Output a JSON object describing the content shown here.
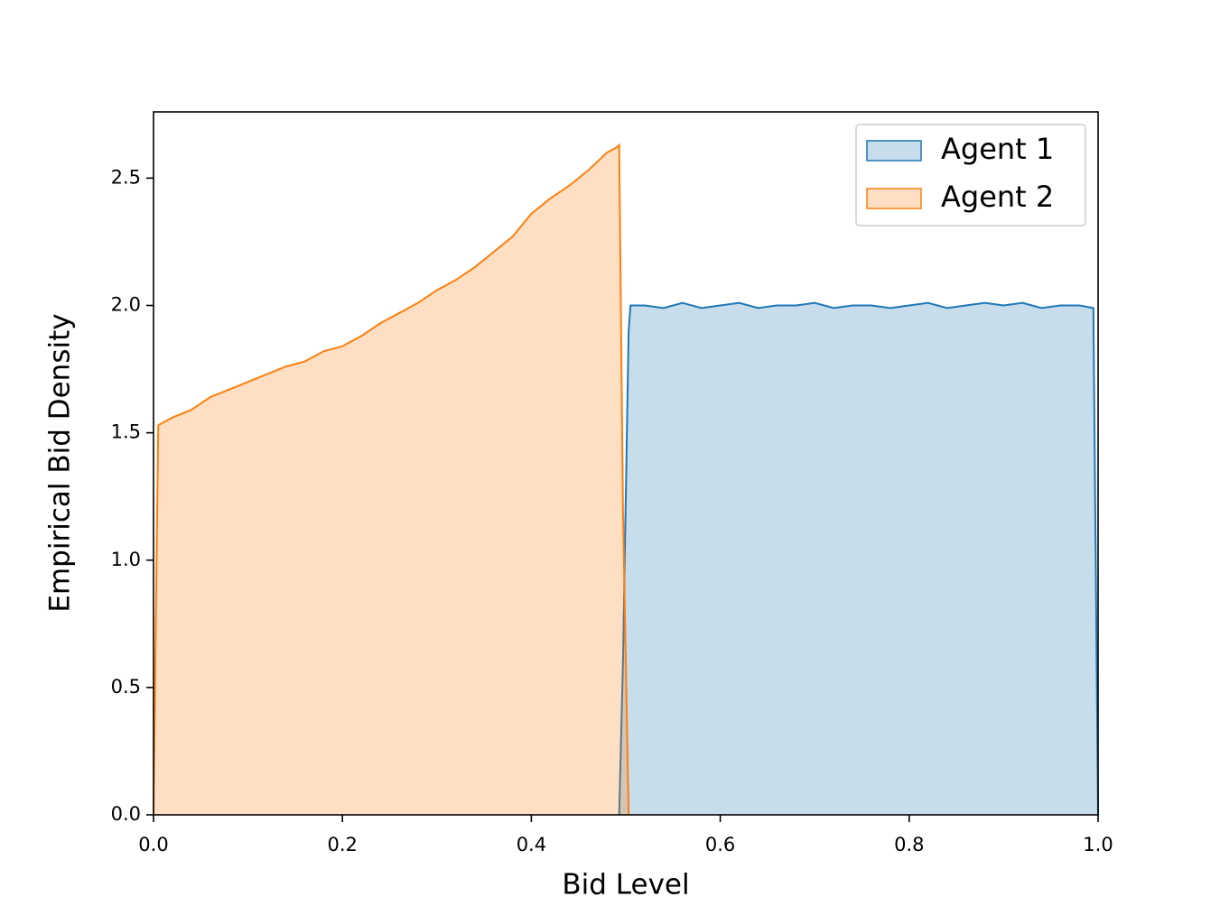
{
  "chart_data": {
    "type": "area",
    "xlabel": "Bid Level",
    "ylabel": "Empirical Bid Density",
    "x": [
      0,
      0.005,
      0.02,
      0.04,
      0.06,
      0.08,
      0.1,
      0.12,
      0.14,
      0.16,
      0.18,
      0.2,
      0.22,
      0.24,
      0.26,
      0.28,
      0.3,
      0.32,
      0.34,
      0.36,
      0.38,
      0.4,
      0.42,
      0.44,
      0.46,
      0.48,
      0.49,
      0.493,
      0.497,
      0.503,
      0.505,
      0.52,
      0.54,
      0.56,
      0.58,
      0.6,
      0.62,
      0.64,
      0.66,
      0.68,
      0.7,
      0.72,
      0.74,
      0.76,
      0.78,
      0.8,
      0.82,
      0.84,
      0.86,
      0.88,
      0.9,
      0.92,
      0.94,
      0.96,
      0.98,
      0.995,
      1.0
    ],
    "series": [
      {
        "name": "Agent 1",
        "color": "#1f77b4",
        "values": [
          null,
          null,
          null,
          null,
          null,
          null,
          null,
          null,
          null,
          null,
          null,
          null,
          null,
          null,
          null,
          null,
          null,
          null,
          null,
          null,
          null,
          null,
          null,
          null,
          null,
          null,
          null,
          0,
          0.6,
          1.9,
          2.0,
          2.0,
          1.99,
          2.01,
          1.99,
          2.0,
          2.01,
          1.99,
          2.0,
          2.0,
          2.01,
          1.99,
          2.0,
          2.0,
          1.99,
          2.0,
          2.01,
          1.99,
          2.0,
          2.01,
          2.0,
          2.01,
          1.99,
          2.0,
          2.0,
          1.99,
          0
        ]
      },
      {
        "name": "Agent 2",
        "color": "#ff7f0e",
        "values": [
          0,
          1.53,
          1.56,
          1.59,
          1.64,
          1.67,
          1.7,
          1.73,
          1.76,
          1.78,
          1.82,
          1.84,
          1.88,
          1.93,
          1.97,
          2.01,
          2.06,
          2.1,
          2.15,
          2.21,
          2.27,
          2.36,
          2.42,
          2.47,
          2.53,
          2.6,
          2.62,
          2.63,
          1.2,
          0,
          null,
          null,
          null,
          null,
          null,
          null,
          null,
          null,
          null,
          null,
          null,
          null,
          null,
          null,
          null,
          null,
          null,
          null,
          null,
          null,
          null,
          null,
          null,
          null,
          null,
          null,
          null
        ]
      }
    ],
    "xlim": [
      0,
      1
    ],
    "ylim": [
      0,
      2.76
    ],
    "xticks": [
      {
        "value": 0,
        "label": "0.0"
      },
      0.2,
      0.4,
      0.6,
      0.8,
      {
        "value": 1,
        "label": "1.0"
      }
    ],
    "yticks": [
      {
        "value": 0,
        "label": "0.0"
      },
      0.5,
      {
        "value": 1,
        "label": "1.0"
      },
      1.5,
      {
        "value": 2,
        "label": "2.0"
      },
      2.5
    ],
    "legend": "upper right",
    "fill_alpha": 0.25
  }
}
